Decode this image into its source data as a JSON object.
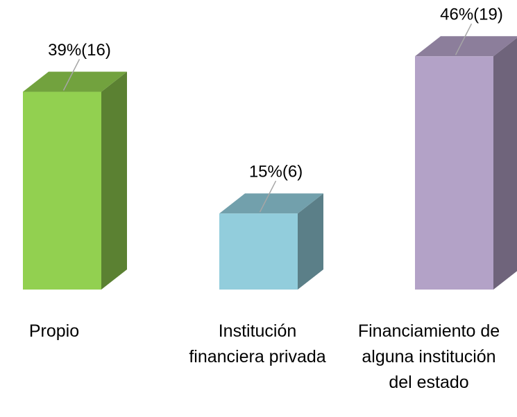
{
  "chart_data": {
    "type": "bar3d",
    "categories": [
      "Propio",
      "Institución financiera privada",
      "Financiamiento de alguna institución del estado"
    ],
    "values": [
      39,
      15,
      46
    ],
    "value_labels": [
      "39%(16)",
      "15%(6)",
      "46%(19)"
    ],
    "colors": [
      "#92d050",
      "#92cddc",
      "#b3a2c7"
    ]
  }
}
